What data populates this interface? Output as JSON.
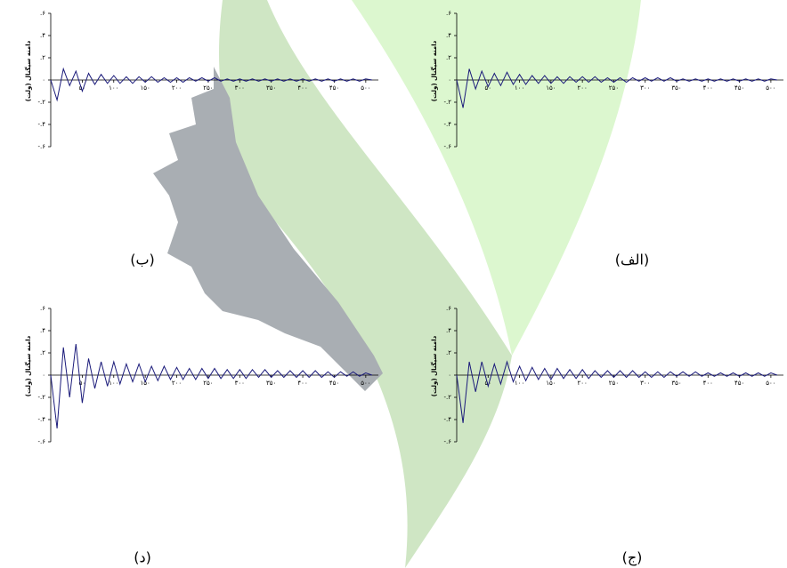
{
  "chart_data": [
    {
      "type": "line",
      "caption": "(ب)",
      "ylabel": "دامنه سیگنال (ولت)",
      "color": "#1a1a7a",
      "x": [
        0,
        10,
        20,
        30,
        40,
        50,
        60,
        70,
        80,
        90,
        100,
        110,
        120,
        130,
        140,
        150,
        160,
        170,
        180,
        190,
        200,
        210,
        220,
        230,
        240,
        250,
        260,
        270,
        280,
        290,
        300,
        310,
        320,
        330,
        340,
        350,
        360,
        370,
        380,
        390,
        400,
        410,
        420,
        430,
        440,
        450,
        460,
        470,
        480,
        490,
        500,
        510
      ],
      "values": [
        0,
        -0.18,
        0.1,
        -0.05,
        0.08,
        -0.1,
        0.06,
        -0.04,
        0.05,
        -0.03,
        0.04,
        -0.03,
        0.03,
        -0.03,
        0.03,
        -0.02,
        0.03,
        -0.02,
        0.02,
        -0.02,
        0.02,
        -0.02,
        0.02,
        -0.01,
        0.02,
        -0.01,
        0.02,
        -0.01,
        0.01,
        -0.01,
        0.01,
        -0.01,
        0.01,
        -0.01,
        0.01,
        -0.01,
        0.01,
        -0.01,
        0.01,
        -0.01,
        0.01,
        -0.01,
        0.01,
        -0.01,
        0.01,
        -0.01,
        0.01,
        -0.01,
        0.01,
        -0.01,
        0.01,
        0
      ],
      "xlim": [
        0,
        520
      ],
      "ylim": [
        -0.6,
        0.6
      ],
      "xticks": [
        {
          "value": 50,
          "label": "۵۰"
        },
        {
          "value": 100,
          "label": "۱۰۰"
        },
        {
          "value": 150,
          "label": "۱۵۰"
        },
        {
          "value": 200,
          "label": "۲۰۰"
        },
        {
          "value": 250,
          "label": "۲۵۰"
        },
        {
          "value": 300,
          "label": "۳۰۰"
        },
        {
          "value": 350,
          "label": "۳۵۰"
        },
        {
          "value": 400,
          "label": "۴۰۰"
        },
        {
          "value": 450,
          "label": "۴۵۰"
        },
        {
          "value": 500,
          "label": "۵۰۰"
        }
      ],
      "yticks": [
        {
          "value": -0.6,
          "label": "-.۶"
        },
        {
          "value": -0.4,
          "label": "-.۴"
        },
        {
          "value": -0.2,
          "label": "-.۲"
        },
        {
          "value": 0,
          "label": "۰"
        },
        {
          "value": 0.2,
          "label": ".۲"
        },
        {
          "value": 0.4,
          "label": ".۴"
        },
        {
          "value": 0.6,
          "label": ".۶"
        }
      ]
    },
    {
      "type": "line",
      "caption": "(الف)",
      "ylabel": "دامنه سیگنال (ولت)",
      "color": "#1a1a7a",
      "x": [
        0,
        10,
        20,
        30,
        40,
        50,
        60,
        70,
        80,
        90,
        100,
        110,
        120,
        130,
        140,
        150,
        160,
        170,
        180,
        190,
        200,
        210,
        220,
        230,
        240,
        250,
        260,
        270,
        280,
        290,
        300,
        310,
        320,
        330,
        340,
        350,
        360,
        370,
        380,
        390,
        400,
        410,
        420,
        430,
        440,
        450,
        460,
        470,
        480,
        490,
        500,
        510
      ],
      "values": [
        0,
        -0.25,
        0.1,
        -0.08,
        0.08,
        -0.06,
        0.06,
        -0.05,
        0.07,
        -0.04,
        0.05,
        -0.04,
        0.04,
        -0.03,
        0.04,
        -0.03,
        0.03,
        -0.03,
        0.03,
        -0.02,
        0.03,
        -0.02,
        0.03,
        -0.02,
        0.02,
        -0.02,
        0.02,
        -0.02,
        0.02,
        -0.01,
        0.02,
        -0.01,
        0.02,
        -0.01,
        0.02,
        -0.01,
        0.01,
        -0.01,
        0.01,
        -0.01,
        0.01,
        -0.01,
        0.01,
        -0.01,
        0.01,
        -0.01,
        0.01,
        -0.01,
        0.01,
        -0.01,
        0.01,
        0
      ],
      "xlim": [
        0,
        520
      ],
      "ylim": [
        -0.6,
        0.6
      ],
      "xticks": [
        {
          "value": 50,
          "label": "۵۰"
        },
        {
          "value": 100,
          "label": "۱۰۰"
        },
        {
          "value": 150,
          "label": "۱۵۰"
        },
        {
          "value": 200,
          "label": "۲۰۰"
        },
        {
          "value": 250,
          "label": "۲۵۰"
        },
        {
          "value": 300,
          "label": "۳۰۰"
        },
        {
          "value": 350,
          "label": "۳۵۰"
        },
        {
          "value": 400,
          "label": "۴۰۰"
        },
        {
          "value": 450,
          "label": "۴۵۰"
        },
        {
          "value": 500,
          "label": "۵۰۰"
        }
      ],
      "yticks": [
        {
          "value": -0.6,
          "label": "-.۶"
        },
        {
          "value": -0.4,
          "label": "-.۴"
        },
        {
          "value": -0.2,
          "label": "-.۲"
        },
        {
          "value": 0,
          "label": "۰"
        },
        {
          "value": 0.2,
          "label": ".۲"
        },
        {
          "value": 0.4,
          "label": ".۴"
        },
        {
          "value": 0.6,
          "label": ".۶"
        }
      ]
    },
    {
      "type": "line",
      "caption": "(د)",
      "ylabel": "دامنه سیگنال (ولت)",
      "color": "#1a1a7a",
      "x": [
        0,
        10,
        20,
        30,
        40,
        50,
        60,
        70,
        80,
        90,
        100,
        110,
        120,
        130,
        140,
        150,
        160,
        170,
        180,
        190,
        200,
        210,
        220,
        230,
        240,
        250,
        260,
        270,
        280,
        290,
        300,
        310,
        320,
        330,
        340,
        350,
        360,
        370,
        380,
        390,
        400,
        410,
        420,
        430,
        440,
        450,
        460,
        470,
        480,
        490,
        500,
        510
      ],
      "values": [
        0,
        -0.48,
        0.25,
        -0.2,
        0.28,
        -0.25,
        0.15,
        -0.12,
        0.12,
        -0.1,
        0.12,
        -0.08,
        0.1,
        -0.06,
        0.1,
        -0.06,
        0.08,
        -0.05,
        0.08,
        -0.04,
        0.07,
        -0.04,
        0.06,
        -0.04,
        0.06,
        -0.03,
        0.06,
        -0.03,
        0.05,
        -0.03,
        0.05,
        -0.03,
        0.05,
        -0.02,
        0.05,
        -0.02,
        0.04,
        -0.02,
        0.04,
        -0.02,
        0.04,
        -0.02,
        0.04,
        -0.02,
        0.03,
        -0.02,
        0.03,
        -0.01,
        0.03,
        -0.01,
        0.02,
        0
      ],
      "xlim": [
        0,
        520
      ],
      "ylim": [
        -0.6,
        0.6
      ],
      "xticks": [
        {
          "value": 50,
          "label": "۵۰"
        },
        {
          "value": 100,
          "label": "۱۰۰"
        },
        {
          "value": 150,
          "label": "۱۵۰"
        },
        {
          "value": 200,
          "label": "۲۰۰"
        },
        {
          "value": 250,
          "label": "۲۵۰"
        },
        {
          "value": 300,
          "label": "۳۰۰"
        },
        {
          "value": 350,
          "label": "۳۵۰"
        },
        {
          "value": 400,
          "label": "۴۰۰"
        },
        {
          "value": 450,
          "label": "۴۵۰"
        },
        {
          "value": 500,
          "label": "۵۰۰"
        }
      ],
      "yticks": [
        {
          "value": -0.6,
          "label": "-.۶"
        },
        {
          "value": -0.4,
          "label": "-.۴"
        },
        {
          "value": -0.2,
          "label": "-.۲"
        },
        {
          "value": 0,
          "label": "۰"
        },
        {
          "value": 0.2,
          "label": ".۲"
        },
        {
          "value": 0.4,
          "label": ".۴"
        },
        {
          "value": 0.6,
          "label": ".۶"
        }
      ]
    },
    {
      "type": "line",
      "caption": "(ج)",
      "ylabel": "دامنه سیگنال (ولت)",
      "color": "#1a1a7a",
      "x": [
        0,
        10,
        20,
        30,
        40,
        50,
        60,
        70,
        80,
        90,
        100,
        110,
        120,
        130,
        140,
        150,
        160,
        170,
        180,
        190,
        200,
        210,
        220,
        230,
        240,
        250,
        260,
        270,
        280,
        290,
        300,
        310,
        320,
        330,
        340,
        350,
        360,
        370,
        380,
        390,
        400,
        410,
        420,
        430,
        440,
        450,
        460,
        470,
        480,
        490,
        500,
        510
      ],
      "values": [
        0,
        -0.43,
        0.12,
        -0.15,
        0.12,
        -0.1,
        0.1,
        -0.08,
        0.12,
        -0.06,
        0.08,
        -0.05,
        0.07,
        -0.04,
        0.06,
        -0.04,
        0.06,
        -0.03,
        0.05,
        -0.03,
        0.05,
        -0.03,
        0.04,
        -0.02,
        0.04,
        -0.02,
        0.04,
        -0.02,
        0.04,
        -0.02,
        0.03,
        -0.02,
        0.03,
        -0.02,
        0.03,
        -0.01,
        0.03,
        -0.01,
        0.03,
        -0.01,
        0.02,
        -0.01,
        0.02,
        -0.01,
        0.02,
        -0.01,
        0.02,
        -0.01,
        0.02,
        -0.01,
        0.02,
        0
      ],
      "xlim": [
        0,
        520
      ],
      "ylim": [
        -0.6,
        0.6
      ],
      "xticks": [
        {
          "value": 50,
          "label": "۵۰"
        },
        {
          "value": 100,
          "label": "۱۰۰"
        },
        {
          "value": 150,
          "label": "۱۵۰"
        },
        {
          "value": 200,
          "label": "۲۰۰"
        },
        {
          "value": 250,
          "label": "۲۵۰"
        },
        {
          "value": 300,
          "label": "۳۰۰"
        },
        {
          "value": 350,
          "label": "۳۵۰"
        },
        {
          "value": 400,
          "label": "۴۰۰"
        },
        {
          "value": 450,
          "label": "۴۵۰"
        },
        {
          "value": 500,
          "label": "۵۰۰"
        }
      ],
      "yticks": [
        {
          "value": -0.6,
          "label": "-.۶"
        },
        {
          "value": -0.4,
          "label": "-.۴"
        },
        {
          "value": -0.2,
          "label": "-.۲"
        },
        {
          "value": 0,
          "label": "۰"
        },
        {
          "value": 0.2,
          "label": ".۲"
        },
        {
          "value": 0.4,
          "label": ".۴"
        },
        {
          "value": 0.6,
          "label": ".۶"
        }
      ]
    }
  ]
}
